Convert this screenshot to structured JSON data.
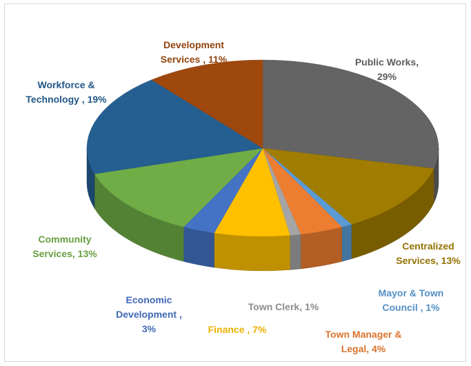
{
  "chart_data": {
    "type": "pie3d",
    "values": [
      29,
      13,
      1,
      4,
      1,
      7,
      3,
      13,
      19,
      11
    ],
    "value_labels": [
      "Public Works, 29%",
      "Centralized Services, 13%",
      "Mayor & Town Council , 1%",
      "Town Manager & Legal, 4%",
      "Town Clerk, 1%",
      "Finance , 7%",
      "Economic Development , 3%",
      "Community Services, 13%",
      "Workforce & Technology , 19%",
      "Development Services , 11%"
    ],
    "colors": [
      "#646464",
      "#a07c00",
      "#5b9bd5",
      "#ed7d31",
      "#a5a5a5",
      "#ffc000",
      "#4472c4",
      "#70ad47",
      "#255e91",
      "#9e480e"
    ]
  }
}
